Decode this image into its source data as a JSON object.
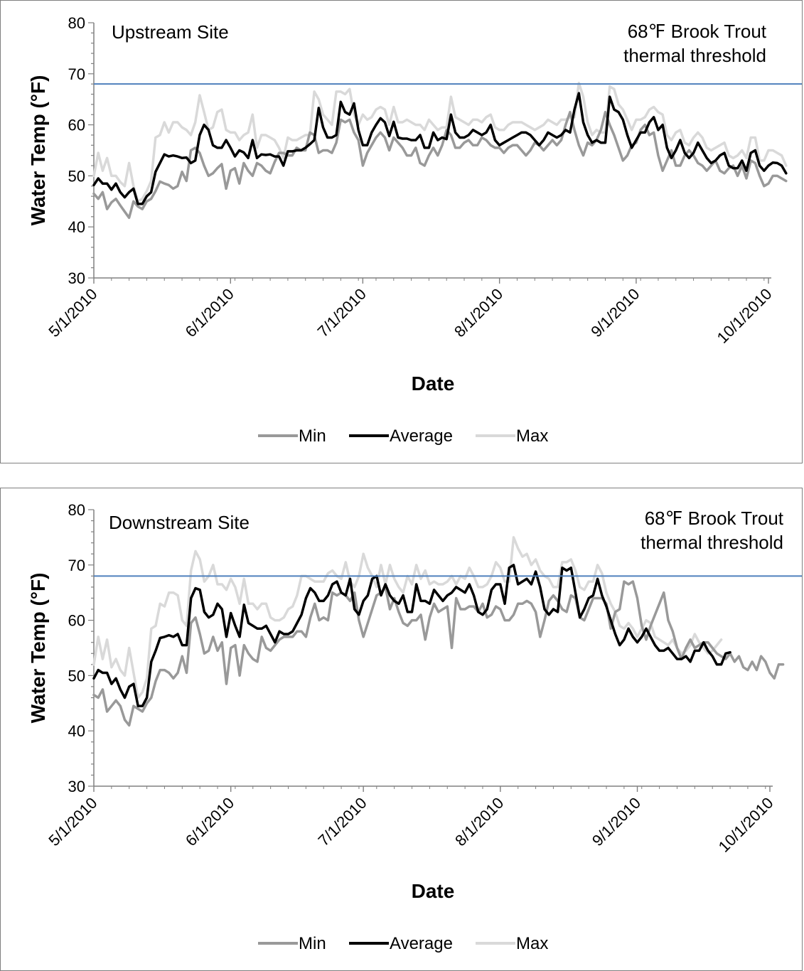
{
  "chart_data": [
    {
      "type": "line",
      "site_label": "Upstream Site",
      "threshold": {
        "value": 68,
        "label_line1": "68℉ Brook Trout",
        "label_line2": "thermal threshold",
        "color": "#4f81bd"
      },
      "xlabel": "Date",
      "ylabel": "Water Temp (°F)",
      "ylim": [
        30,
        80
      ],
      "yticks": [
        "30",
        "40",
        "50",
        "60",
        "70",
        "80"
      ],
      "xticks": [
        "5/1/2010",
        "6/1/2010",
        "7/1/2010",
        "8/1/2010",
        "9/1/2010",
        "10/1/2010"
      ],
      "xtick_days": [
        0,
        31,
        61,
        92,
        123,
        153
      ],
      "legend": {
        "position": "bottom",
        "labels": [
          "Min",
          "Average",
          "Max"
        ]
      },
      "grid": false,
      "series": [
        {
          "name": "Min",
          "color": "#999999",
          "values": [
            46.5,
            45.5,
            46.8,
            43.5,
            44.8,
            45.5,
            44.2,
            43,
            41.8,
            45,
            44,
            43.5,
            45,
            45.5,
            47,
            48.9,
            48.5,
            48.2,
            47.5,
            48,
            50.8,
            49,
            55,
            55.5,
            54.5,
            52,
            50,
            50.5,
            51.5,
            52.3,
            47.5,
            51,
            51.5,
            48.5,
            52.5,
            51,
            50,
            52.5,
            52,
            51,
            50.5,
            52.7,
            54.5,
            54.5,
            54,
            54,
            55.5,
            55,
            55,
            58.5,
            58,
            54.5,
            55,
            55,
            54.5,
            56.5,
            61,
            60.5,
            61,
            58.5,
            57,
            52,
            54.5,
            56,
            57.5,
            58.5,
            57.5,
            55,
            57.5,
            56.5,
            55.5,
            54,
            54,
            55.5,
            52.5,
            52,
            54,
            55.5,
            54,
            56,
            59,
            58,
            55.5,
            55.5,
            56.5,
            57,
            56,
            56,
            57.5,
            57,
            56,
            55.5,
            55.5,
            54.5,
            55.5,
            56,
            56,
            55,
            54,
            55,
            56.5,
            56,
            55,
            56,
            57,
            56,
            57,
            60,
            62.5,
            59,
            56,
            54,
            56.5,
            56,
            57,
            59,
            62.5,
            60,
            58,
            55.5,
            53,
            54,
            56,
            56.5,
            59,
            60,
            58,
            58.5,
            54,
            51,
            53,
            55,
            52,
            52,
            54,
            55,
            54,
            52.5,
            52,
            51,
            52,
            53,
            51,
            50.5,
            51.5,
            52,
            50,
            52,
            49.5,
            53,
            52.5,
            50,
            48,
            48.5,
            50,
            50,
            49.5,
            49
          ]
        },
        {
          "name": "Average",
          "color": "#000000",
          "values": [
            48.2,
            49.5,
            48.5,
            48.5,
            47.3,
            48.5,
            46.8,
            45.8,
            46.8,
            47.5,
            44.5,
            44.5,
            46,
            46.8,
            50.8,
            52.5,
            54.2,
            53.8,
            54,
            53.8,
            53.5,
            53.6,
            52.5,
            53,
            58,
            60,
            59,
            56,
            55.5,
            55.5,
            57,
            55.5,
            53.8,
            55,
            54.6,
            53.5,
            57,
            53.5,
            54.2,
            54.1,
            54.2,
            53.8,
            53.8,
            52,
            54.8,
            54.8,
            55,
            55,
            55.5,
            56.2,
            57,
            63.3,
            59.5,
            57.5,
            57.5,
            58,
            64.5,
            62.5,
            62,
            64.2,
            59,
            56,
            56,
            58.5,
            60,
            61.3,
            60.5,
            57.8,
            60.6,
            57.5,
            57.3,
            57.3,
            57,
            57,
            58,
            55.5,
            55.5,
            58.5,
            57,
            57.5,
            57.2,
            62,
            58.5,
            57.5,
            57.5,
            58,
            59,
            58.5,
            58,
            58.5,
            60,
            57,
            56,
            56.5,
            57,
            57.5,
            58,
            58.5,
            58.5,
            58,
            57,
            56,
            57,
            58.5,
            58,
            57.5,
            58,
            59,
            58.5,
            63,
            66.2,
            60.5,
            58,
            56.5,
            57,
            56.5,
            56.5,
            65.5,
            63,
            62.5,
            61,
            58,
            55.5,
            57,
            58.5,
            58.5,
            60.5,
            61.5,
            59,
            60,
            55.5,
            53.5,
            55,
            57,
            54.5,
            53.5,
            54.5,
            56.5,
            55,
            53.5,
            52.5,
            53,
            54,
            54.5,
            52,
            51.5,
            51.5,
            53,
            51,
            54.5,
            55,
            52,
            51,
            52,
            52.6,
            52.5,
            52,
            50.5
          ]
        },
        {
          "name": "Max",
          "color": "#d9d9d9",
          "values": [
            50,
            54.5,
            51,
            53.5,
            50,
            50,
            48.8,
            48,
            52.5,
            48,
            45,
            45.5,
            47,
            49,
            57.5,
            58,
            60.5,
            58.5,
            60.5,
            60.5,
            59.5,
            59,
            58,
            60.5,
            65.8,
            62.5,
            59,
            59.5,
            62.5,
            63,
            59,
            58.5,
            58.5,
            57,
            58,
            58.5,
            62,
            55.5,
            58,
            58,
            57.5,
            57,
            55.5,
            53.5,
            57.5,
            57,
            57,
            57.5,
            58,
            58,
            66.5,
            65,
            62,
            61,
            60,
            66.5,
            66.5,
            66,
            67,
            62,
            60,
            62,
            61,
            61.5,
            63,
            63.5,
            63,
            60,
            63.5,
            60.5,
            60.5,
            61,
            60.5,
            60,
            60,
            59,
            61,
            60,
            59,
            59.5,
            59.5,
            65.5,
            61.5,
            61,
            60.5,
            60,
            61,
            61,
            60.5,
            61.5,
            62,
            59.5,
            59,
            59,
            60,
            60.5,
            60.5,
            60.5,
            60,
            59.5,
            59,
            59.5,
            60,
            61,
            60.5,
            60,
            61,
            61,
            61.5,
            61.5,
            68.2,
            65.5,
            60.5,
            58,
            59,
            58.5,
            58.5,
            67.5,
            67,
            64,
            63,
            61,
            59,
            61,
            61,
            61.5,
            63,
            63.5,
            62.5,
            62,
            58,
            57,
            58.5,
            59,
            56.5,
            56,
            57.5,
            58.5,
            57.5,
            55.5,
            55,
            55.5,
            56,
            56.5,
            54,
            53.5,
            54,
            55,
            53.5,
            57.5,
            57.5,
            53,
            53,
            55,
            55,
            54.5,
            54,
            52
          ]
        }
      ]
    },
    {
      "type": "line",
      "site_label": "Downstream Site",
      "threshold": {
        "value": 68,
        "label_line1": "68℉ Brook Trout",
        "label_line2": "thermal threshold",
        "color": "#4f81bd"
      },
      "xlabel": "Date",
      "ylabel": "Water Temp (°F)",
      "ylim": [
        30,
        80
      ],
      "yticks": [
        "30",
        "40",
        "50",
        "60",
        "70",
        "80"
      ],
      "xticks": [
        "5/1/2010",
        "6/1/2010",
        "7/1/2010",
        "8/1/2010",
        "9/1/2010",
        "10/1/2010"
      ],
      "xtick_days": [
        0,
        31,
        61,
        92,
        123,
        153
      ],
      "legend": {
        "position": "bottom",
        "labels": [
          "Min",
          "Average",
          "Max"
        ]
      },
      "grid": false,
      "series": [
        {
          "name": "Min",
          "color": "#999999",
          "values": [
            46.5,
            46,
            47.5,
            43.5,
            44.5,
            45.5,
            44.5,
            42,
            41,
            44.5,
            44,
            43.5,
            45,
            46,
            49,
            51,
            51,
            50.5,
            49.5,
            50.5,
            53.5,
            50.5,
            59.5,
            60.5,
            57.5,
            54,
            54.5,
            57,
            54.5,
            56,
            48.5,
            55,
            55.5,
            50,
            55.5,
            54,
            53,
            52.5,
            57,
            55,
            54.5,
            55.5,
            56.5,
            57,
            57,
            57,
            58,
            58,
            57,
            60.5,
            63,
            60,
            60.5,
            60,
            65,
            64.5,
            65,
            64.5,
            63.5,
            65,
            60,
            57,
            59.5,
            62,
            64.5,
            65,
            66,
            62,
            64,
            61.5,
            59.5,
            59,
            60,
            60,
            61,
            56.5,
            60.5,
            63,
            61.5,
            62,
            62.5,
            55,
            64,
            62,
            62,
            62.5,
            62.5,
            61.5,
            63,
            60.5,
            61,
            62.5,
            62,
            60,
            60,
            61,
            63,
            63,
            63.5,
            63,
            61.5,
            57,
            60,
            63.5,
            64.5,
            63.5,
            62,
            61.5,
            64.5,
            64,
            60.5,
            60,
            62,
            64,
            64,
            64,
            63,
            58.5,
            61.5,
            62,
            67,
            66.5,
            67,
            64,
            59,
            56.5,
            59,
            61,
            63,
            65,
            60,
            58,
            55,
            53,
            55,
            56.5,
            55,
            55.5,
            56,
            56,
            55,
            54,
            53.5,
            53,
            54,
            52.5,
            53.5,
            51.5,
            51,
            52.5,
            51,
            53.5,
            52.5,
            50.5,
            49.5,
            52,
            52
          ]
        },
        {
          "name": "Average",
          "color": "#000000",
          "values": [
            49.5,
            51,
            50.5,
            50.5,
            48.5,
            49.5,
            47.5,
            46,
            48,
            48.5,
            44.5,
            44.5,
            46,
            52.5,
            54.5,
            56.8,
            57,
            57.3,
            57,
            57.5,
            55.5,
            55.5,
            64,
            65.8,
            65.5,
            61.5,
            60.5,
            61,
            63,
            62,
            57,
            61.3,
            59,
            57,
            62.8,
            59.5,
            59,
            58.5,
            58.5,
            59,
            57.5,
            56,
            58,
            57.5,
            57.5,
            58,
            59.5,
            61,
            64,
            65.8,
            65,
            63.5,
            63.5,
            64.5,
            66.5,
            67,
            65,
            64.5,
            67.5,
            62,
            61,
            63.5,
            64.5,
            67.5,
            68,
            64.5,
            66.5,
            64.5,
            63.5,
            63,
            64.5,
            61.5,
            61.5,
            66.5,
            63.5,
            63.5,
            63,
            65.5,
            64.5,
            63.5,
            64.5,
            65,
            66,
            65.5,
            65,
            66.5,
            64.5,
            61.5,
            61,
            62,
            65.5,
            66.5,
            66.5,
            63,
            69.5,
            70,
            66.5,
            67,
            67.5,
            66.5,
            68.8,
            66,
            62,
            61,
            62,
            61.5,
            69.5,
            69,
            69.5,
            65,
            60.5,
            62,
            64,
            64.5,
            67.5,
            64.5,
            62.5,
            60,
            57.5,
            55.5,
            56.5,
            58.5,
            57,
            56,
            57,
            58.5,
            57,
            55.5,
            54.5,
            54.5,
            55,
            54,
            53,
            53,
            53.5,
            52.5,
            54.5,
            54.5,
            56,
            54.5,
            53.5,
            52,
            52,
            54,
            54.2
          ]
        },
        {
          "name": "Max",
          "color": "#d9d9d9",
          "values": [
            52,
            57,
            53,
            56.5,
            51.5,
            53,
            51,
            50,
            55,
            50.5,
            46,
            47,
            49.5,
            58.5,
            59,
            63,
            62.5,
            65,
            65,
            64.5,
            60,
            59,
            69,
            72.5,
            71,
            67,
            68,
            70,
            66.5,
            66.5,
            65.5,
            67.5,
            66,
            63,
            67.5,
            63,
            63,
            62,
            63,
            63,
            60.5,
            60,
            60,
            60.5,
            62,
            62.5,
            64.5,
            68,
            68,
            67.5,
            67,
            67,
            67,
            68.5,
            69,
            68,
            67.5,
            70.5,
            67,
            66,
            68,
            72,
            69.5,
            68,
            66,
            70,
            66.5,
            70,
            67.5,
            66,
            65,
            68,
            66.5,
            70,
            67.5,
            69,
            66.5,
            67,
            66.5,
            66.5,
            67,
            68,
            66.5,
            68,
            67.5,
            69.5,
            68,
            66,
            66,
            66.5,
            68,
            70.5,
            69.5,
            67,
            67,
            75,
            73,
            71.5,
            72,
            70,
            71,
            69,
            68,
            67.5,
            66,
            66,
            70.5,
            70.5,
            71,
            69,
            66,
            65.5,
            67,
            67,
            70,
            68.5,
            65,
            63,
            61.5,
            59,
            58.5,
            59.5,
            58.5,
            57,
            58.5,
            60,
            59.5,
            57,
            56.5,
            56,
            55.5,
            56.5,
            55,
            54,
            54.5,
            55.5,
            57.5,
            56,
            55,
            54,
            54.5,
            55.5,
            56.5
          ]
        }
      ]
    }
  ]
}
